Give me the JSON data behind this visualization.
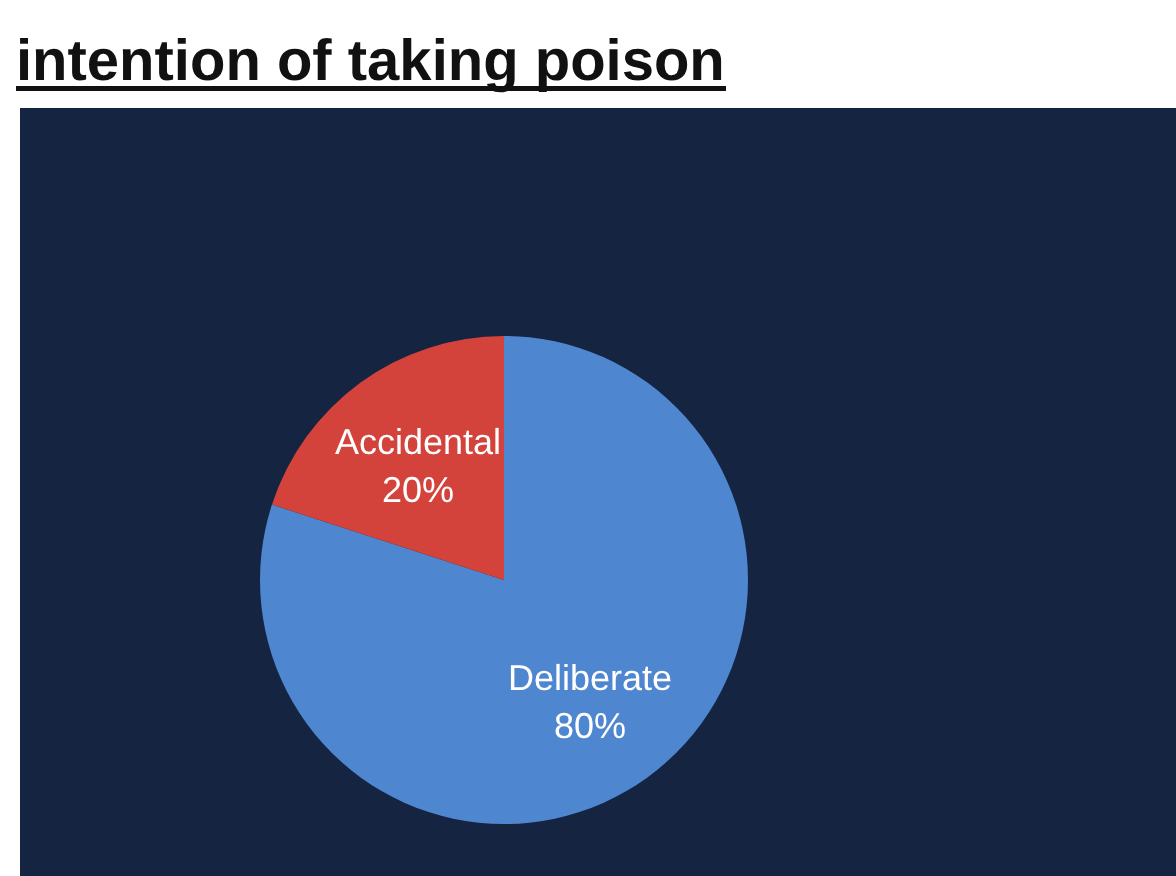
{
  "chart_data": {
    "type": "pie",
    "title": "intention of taking poison",
    "categories": [
      "Deliberate",
      "Accidental"
    ],
    "values": [
      80,
      20
    ],
    "colors": [
      "#4f86d0",
      "#d4433b"
    ],
    "value_labels": [
      "80%",
      "20%"
    ]
  }
}
